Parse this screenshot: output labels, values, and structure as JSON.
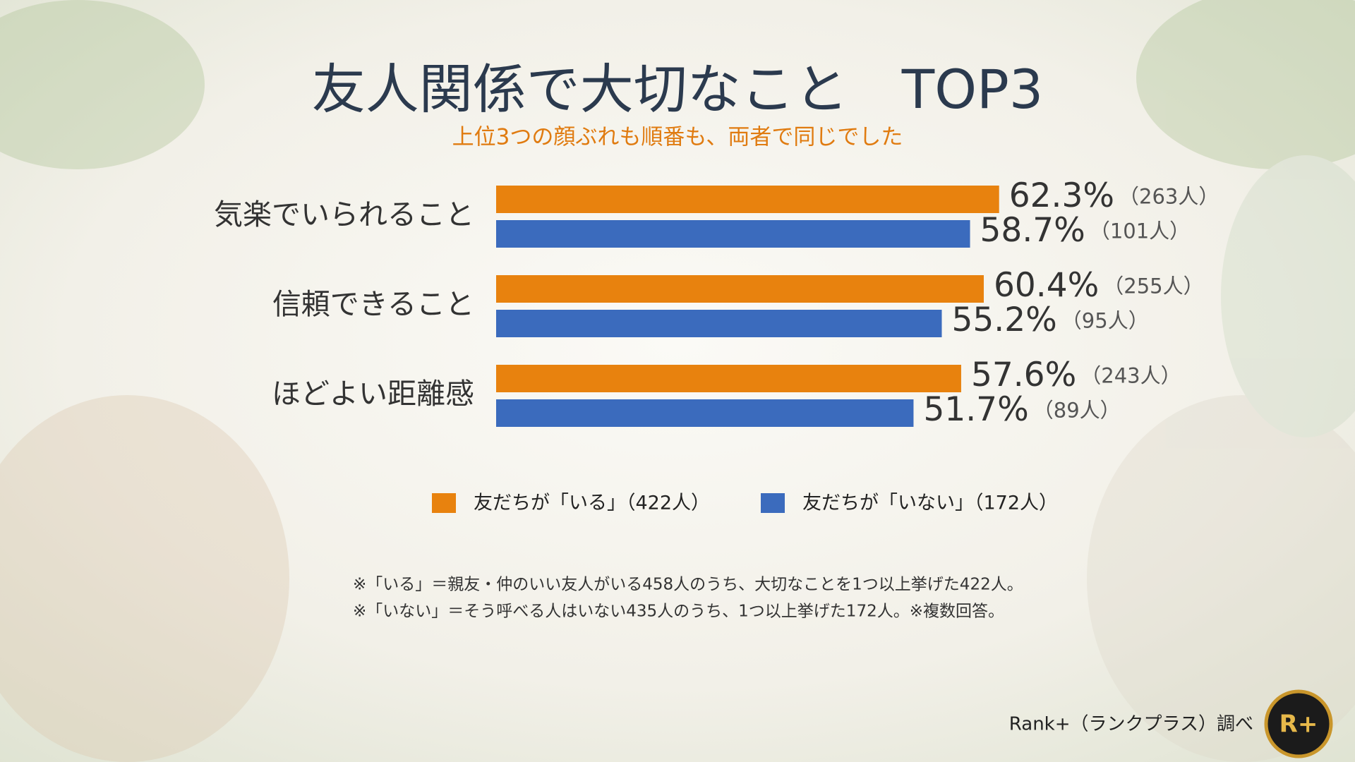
{
  "chart_data": {
    "type": "bar",
    "orientation": "horizontal",
    "title": "友人関係で大切なこと　TOP3",
    "subtitle": "上位3つの顔ぶれも順番も、両者で同じでした",
    "categories": [
      "気楽でいられること",
      "信頼できること",
      "ほどよい距離感"
    ],
    "series": [
      {
        "name": "友だちが「いる」（422人）",
        "color": "#e8820e",
        "values": [
          62.3,
          60.4,
          57.6
        ],
        "value_labels": [
          "62.3%",
          "60.4%",
          "57.6%"
        ],
        "count_labels": [
          "（263人）",
          "（255人）",
          "（243人）"
        ]
      },
      {
        "name": "友だちが「いない」（172人）",
        "color": "#3b6bbd",
        "values": [
          58.7,
          55.2,
          51.7
        ],
        "value_labels": [
          "58.7%",
          "55.2%",
          "51.7%"
        ],
        "count_labels": [
          "（101人）",
          "（95人）",
          "（89人）"
        ]
      }
    ],
    "notes": [
      "※「いる」＝親友・仲のいい友人がいる458人のうち、大切なことを1つ以上挙げた422人。",
      "※「いない」＝そう呼べる人はいない435人のうち、1つ以上挙げた172人。※複数回答。"
    ],
    "source": "Rank+（ランクプラス）調べ",
    "logo": "R+"
  }
}
